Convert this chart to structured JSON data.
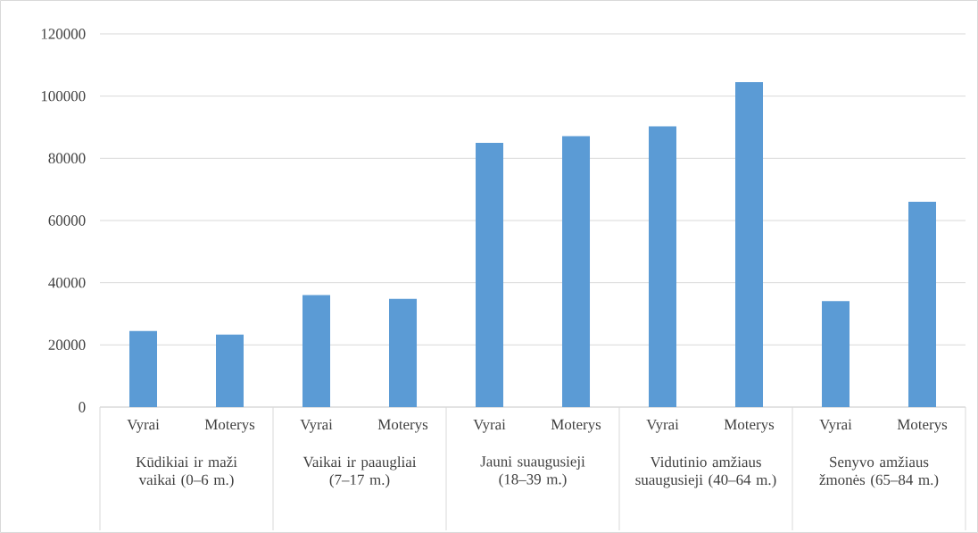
{
  "chart_data": {
    "type": "bar",
    "categories": [
      "Vyrai",
      "Moterys",
      "Vyrai",
      "Moterys",
      "Vyrai",
      "Moterys",
      "Vyrai",
      "Moterys",
      "Vyrai",
      "Moterys"
    ],
    "values": [
      24500,
      23300,
      36000,
      34800,
      85000,
      87100,
      90300,
      104500,
      34100,
      66000
    ],
    "color": "#5b9bd5",
    "ylim": [
      0,
      120000
    ],
    "yticks": [
      0,
      20000,
      40000,
      60000,
      80000,
      100000,
      120000
    ],
    "grid": "y",
    "annotations": [
      "Kūdikiai ir maži vaikai (0–6 m.)",
      "Vaikai ir paaugliai (7–17 m.)",
      "Jauni suaugusieji (18–39 m.)",
      "Vidutinio amžiaus suaugusieji (40–64 m.)",
      "Senyvo amžiaus žmonės (65–84 m.)"
    ]
  }
}
